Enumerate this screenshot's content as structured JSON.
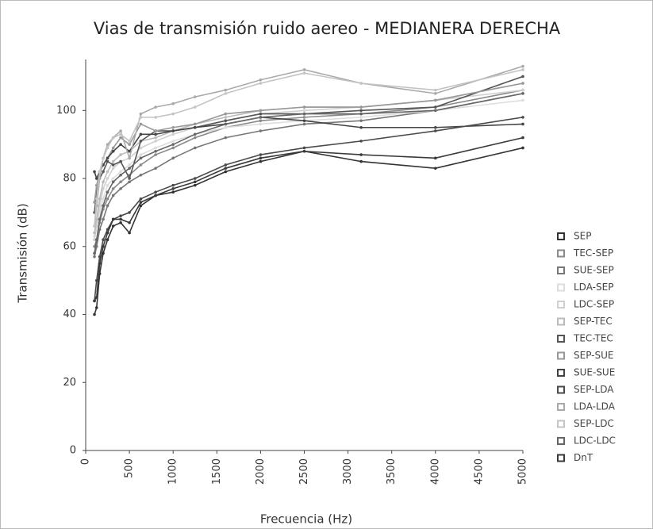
{
  "chart_data": {
    "type": "line",
    "title": "Vias de transmisión ruido aereo - MEDIANERA DERECHA",
    "x_label": "Frecuencia (Hz)",
    "y_label": "Transmisión (dB)",
    "x": [
      100,
      125,
      160,
      200,
      250,
      315,
      400,
      500,
      630,
      800,
      1000,
      1250,
      1600,
      2000,
      2500,
      3150,
      4000,
      5000
    ],
    "xlim": [
      0,
      5000
    ],
    "xticks": [
      0,
      500,
      1000,
      1500,
      2000,
      2500,
      3000,
      3500,
      4000,
      4500,
      5000
    ],
    "ylim": [
      0,
      115
    ],
    "yticks": [
      0,
      20,
      40,
      60,
      80,
      100
    ],
    "series": [
      {
        "name": "SEP",
        "color": "#333333",
        "values": [
          40,
          42,
          52,
          58,
          62,
          66,
          67,
          64,
          72,
          75,
          76,
          78,
          82,
          85,
          88,
          85,
          83,
          89
        ]
      },
      {
        "name": "TEC-SEP",
        "color": "#8a8a8a",
        "values": [
          60,
          62,
          67,
          71,
          74,
          77,
          79,
          81,
          84,
          87,
          89,
          92,
          95,
          97,
          98,
          99,
          101,
          106
        ]
      },
      {
        "name": "SUE-SEP",
        "color": "#777777",
        "values": [
          57,
          60,
          65,
          68,
          72,
          75,
          77,
          79,
          81,
          83,
          86,
          89,
          92,
          94,
          96,
          97,
          100,
          105
        ]
      },
      {
        "name": "LDA-SEP",
        "color": "#dddddd",
        "values": [
          63,
          66,
          70,
          74,
          78,
          80,
          82,
          84,
          87,
          89,
          91,
          93,
          95,
          96,
          97,
          98,
          100,
          103
        ]
      },
      {
        "name": "LDC-SEP",
        "color": "#d0d0d0",
        "values": [
          62,
          66,
          72,
          77,
          80,
          83,
          85,
          86,
          89,
          91,
          93,
          95,
          97,
          99,
          100,
          101,
          103,
          106
        ]
      },
      {
        "name": "SEP-TEC",
        "color": "#bbbbbb",
        "values": [
          64,
          68,
          74,
          79,
          82,
          85,
          87,
          88,
          91,
          92,
          94,
          96,
          98,
          100,
          101,
          101,
          103,
          108
        ]
      },
      {
        "name": "TEC-TEC",
        "color": "#555555",
        "values": [
          70,
          76,
          80,
          82,
          85,
          84,
          85,
          80,
          91,
          94,
          94,
          95,
          97,
          99,
          99,
          100,
          101,
          110
        ]
      },
      {
        "name": "SEP-SUE",
        "color": "#999999",
        "values": [
          73,
          78,
          82,
          84,
          86,
          89,
          92,
          90,
          96,
          94,
          95,
          96,
          99,
          100,
          101,
          101,
          103,
          108
        ]
      },
      {
        "name": "SUE-SUE",
        "color": "#444444",
        "values": [
          82,
          80,
          82,
          84,
          86,
          88,
          90,
          88,
          93,
          93,
          94,
          95,
          96,
          98,
          97,
          95,
          95,
          96
        ]
      },
      {
        "name": "SEP-LDA",
        "color": "#4a4a4a",
        "values": [
          44,
          50,
          57,
          62,
          65,
          68,
          69,
          70,
          74,
          76,
          78,
          80,
          84,
          87,
          89,
          91,
          94,
          98
        ]
      },
      {
        "name": "LDA-LDA",
        "color": "#aaaaaa",
        "values": [
          66,
          72,
          80,
          86,
          90,
          92,
          94,
          86,
          99,
          101,
          102,
          104,
          106,
          109,
          112,
          108,
          105,
          113
        ]
      },
      {
        "name": "SEP-LDC",
        "color": "#c4c4c4",
        "values": [
          66,
          74,
          82,
          86,
          89,
          92,
          93,
          91,
          98,
          98,
          99,
          101,
          105,
          108,
          111,
          108,
          106,
          112
        ]
      },
      {
        "name": "LDC-LDC",
        "color": "#666666",
        "values": [
          58,
          62,
          68,
          72,
          76,
          79,
          81,
          83,
          86,
          88,
          90,
          93,
          96,
          98,
          99,
          99,
          100,
          105
        ]
      },
      {
        "name": "DnT",
        "color": "#3a3a3a",
        "values": [
          44,
          45,
          55,
          60,
          64,
          68,
          68,
          67,
          73,
          75,
          77,
          79,
          83,
          86,
          88,
          87,
          86,
          92
        ]
      }
    ]
  }
}
